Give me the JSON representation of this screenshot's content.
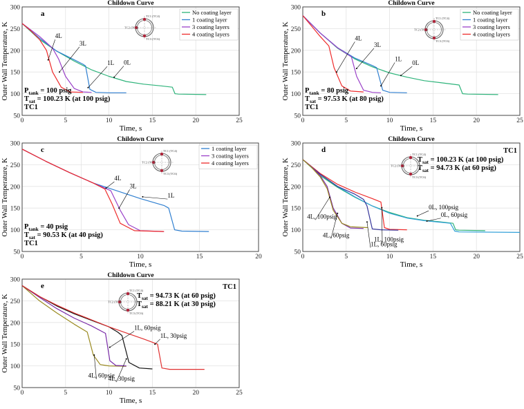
{
  "figure": {
    "title": "Childown Curve multi-panel figure"
  },
  "colors": {
    "no_coating": "#2db37a",
    "one": "#2f7fd0",
    "three": "#9a40c8",
    "four": "#ee2a2a",
    "fourL60": "#9a8a20",
    "oneL30": "#e03030",
    "fourL30": "#111111"
  },
  "chart_data": [
    {
      "panel": "a",
      "type": "line",
      "title": "Childown Curve",
      "xlabel": "Time, s",
      "ylabel": "Outer Wall Temperature, K",
      "xlim": [
        0,
        25
      ],
      "ylim": [
        50,
        300
      ],
      "xticks": [
        0,
        5,
        10,
        15,
        20,
        25
      ],
      "yticks": [
        50,
        100,
        150,
        200,
        250,
        300
      ],
      "grid": true,
      "legend_position": "top-right",
      "info": [
        "P_tank = 100 psig",
        "T_sat = 100.23 K (at 100 psig)",
        "TC1"
      ],
      "series": [
        {
          "name": "No coating layer",
          "color": "#2db37a",
          "label": "0L",
          "x": [
            0,
            2,
            4,
            6,
            8,
            10,
            12,
            14,
            16,
            17.3,
            17.6,
            18,
            21.2
          ],
          "y": [
            262,
            225,
            198,
            175,
            155,
            140,
            128,
            122,
            118,
            115,
            100,
            99,
            98
          ]
        },
        {
          "name": "1 coating layer",
          "color": "#2f7fd0",
          "label": "1L",
          "x": [
            0,
            2,
            4,
            6,
            7,
            7.3,
            7.8,
            8.5,
            10,
            12
          ],
          "y": [
            262,
            228,
            198,
            178,
            168,
            164,
            110,
            103,
            102,
            102
          ]
        },
        {
          "name": "3 coating layers",
          "color": "#9a40c8",
          "label": "3L",
          "x": [
            0,
            2,
            3.5,
            4.2,
            5,
            6,
            7,
            8
          ],
          "y": [
            262,
            232,
            205,
            180,
            140,
            112,
            104,
            103
          ]
        },
        {
          "name": "4 coating layers",
          "color": "#ee2a2a",
          "label": "4L",
          "x": [
            0,
            1,
            2,
            2.8,
            3.5,
            4.5,
            5.5,
            7
          ],
          "y": [
            262,
            245,
            225,
            200,
            150,
            115,
            104,
            103
          ]
        }
      ]
    },
    {
      "panel": "b",
      "type": "line",
      "title": "Childown Curve",
      "xlabel": "Time, s",
      "ylabel": "Outer Wall Temperature, K",
      "xlim": [
        0,
        25
      ],
      "ylim": [
        50,
        300
      ],
      "xticks": [
        0,
        5,
        10,
        15,
        20,
        25
      ],
      "yticks": [
        50,
        100,
        150,
        200,
        250,
        300
      ],
      "grid": true,
      "legend_position": "top-right",
      "info": [
        "P_tank = 80 psig",
        "T_sat = 97.53 K (at 80 psig)",
        "TC1"
      ],
      "series": [
        {
          "name": "No coating layer",
          "color": "#2db37a",
          "label": "0L",
          "x": [
            0,
            2,
            4,
            6,
            8,
            10,
            12,
            14,
            16,
            18,
            18.4,
            19,
            22.5
          ],
          "y": [
            280,
            240,
            205,
            180,
            162,
            148,
            138,
            130,
            125,
            120,
            100,
            99,
            98
          ]
        },
        {
          "name": "1 coating layer",
          "color": "#2f7fd0",
          "label": "1L",
          "x": [
            0,
            2,
            4,
            6,
            8,
            8.5,
            9.2,
            10,
            12
          ],
          "y": [
            280,
            240,
            206,
            182,
            165,
            160,
            108,
            103,
            102
          ]
        },
        {
          "name": "3 coating layers",
          "color": "#9a40c8",
          "label": "3L",
          "x": [
            0,
            2,
            4,
            5.6,
            6.2,
            7,
            8,
            9
          ],
          "y": [
            280,
            240,
            206,
            185,
            140,
            108,
            103,
            102
          ]
        },
        {
          "name": "4 coating layers",
          "color": "#ee2a2a",
          "label": "4L",
          "x": [
            0,
            1,
            2,
            3,
            3.6,
            4.5,
            5.5,
            7
          ],
          "y": [
            280,
            256,
            232,
            210,
            160,
            118,
            106,
            104
          ]
        }
      ]
    },
    {
      "panel": "c",
      "type": "line",
      "title": "Childown Curve",
      "xlabel": "Time, s",
      "ylabel": "Outer Wall Temperature, K",
      "xlim": [
        0,
        20
      ],
      "ylim": [
        50,
        300
      ],
      "xticks": [
        0,
        5,
        10,
        15,
        20
      ],
      "yticks": [
        50,
        100,
        150,
        200,
        250,
        300
      ],
      "grid": true,
      "legend_position": "top-right",
      "info": [
        "P_tank = 40 psig",
        "T_sat = 90.53 K (at 40 psig)",
        "TC1"
      ],
      "series": [
        {
          "name": "1 coating layer",
          "color": "#2f7fd0",
          "label": "1L",
          "x": [
            0,
            2,
            4,
            6,
            8,
            10,
            12,
            12.4,
            12.9,
            13.5,
            15.8
          ],
          "y": [
            286,
            258,
            232,
            208,
            190,
            172,
            156,
            150,
            100,
            97,
            96
          ]
        },
        {
          "name": "3 coating layers",
          "color": "#9a40c8",
          "label": "3L",
          "x": [
            0,
            2,
            4,
            6,
            7.5,
            8.3,
            9,
            10,
            12
          ],
          "y": [
            286,
            258,
            232,
            208,
            190,
            145,
            112,
            98,
            96
          ]
        },
        {
          "name": "4 coating layers",
          "color": "#ee2a2a",
          "label": "4L",
          "x": [
            0,
            2,
            4,
            6,
            7,
            7.6,
            8.3,
            9.5,
            12
          ],
          "y": [
            286,
            258,
            232,
            208,
            194,
            160,
            115,
            98,
            96
          ]
        }
      ]
    },
    {
      "panel": "d",
      "type": "line",
      "title": "Childown Curve",
      "xlabel": "Time, s",
      "ylabel": "Outer Wall Temperature, K",
      "xlim": [
        0,
        25
      ],
      "ylim": [
        50,
        300
      ],
      "xticks": [
        0,
        5,
        10,
        15,
        20,
        25
      ],
      "yticks": [
        50,
        100,
        150,
        200,
        250,
        300
      ],
      "grid": true,
      "info": [
        "TC1",
        "T_sat = 100.23 K (at 100 psig)",
        "T_sat = 94.73 K (at 60 psig)"
      ],
      "series": [
        {
          "name": "0L, 100psig",
          "color": "#2db37a",
          "x": [
            0,
            2,
            4,
            6,
            8,
            10,
            12,
            14,
            16,
            17.3,
            17.6,
            18,
            21
          ],
          "y": [
            262,
            225,
            198,
            175,
            155,
            140,
            128,
            122,
            118,
            115,
            100,
            99,
            98
          ]
        },
        {
          "name": "0L, 60psig",
          "color": "#2f9fd8",
          "x": [
            0,
            2,
            4,
            6,
            8,
            10,
            12,
            14,
            16,
            17,
            17.5,
            18,
            25
          ],
          "y": [
            262,
            228,
            200,
            176,
            155,
            138,
            127,
            121,
            117,
            115,
            97,
            95,
            94
          ]
        },
        {
          "name": "1L, 100psig",
          "color": "#ee2a2a",
          "x": [
            0,
            2,
            4,
            6,
            8,
            9,
            9.4,
            10,
            12
          ],
          "y": [
            262,
            230,
            205,
            187,
            172,
            164,
            105,
            101,
            100
          ]
        },
        {
          "name": "1L, 60psig",
          "color": "#333399",
          "x": [
            0,
            2,
            4,
            6,
            7,
            7.4,
            8,
            9,
            11
          ],
          "y": [
            262,
            228,
            200,
            182,
            170,
            155,
            102,
            100,
            99
          ]
        },
        {
          "name": "4L, 100psig",
          "color": "#7a2ba8",
          "x": [
            0,
            1,
            2,
            2.8,
            3.5,
            4.5,
            5.5,
            7
          ],
          "y": [
            262,
            245,
            225,
            200,
            150,
            115,
            104,
            103
          ]
        },
        {
          "name": "4L, 60psig",
          "color": "#9a8a20",
          "x": [
            0,
            1,
            2,
            2.8,
            3.5,
            4.5,
            5.5,
            7.5
          ],
          "y": [
            262,
            244,
            222,
            195,
            145,
            115,
            107,
            105
          ]
        }
      ],
      "annotations": [
        "0L, 100psig",
        "0L, 60psig",
        "4L, 100psig",
        "4L, 60psig",
        "1L, 60psig",
        "1L, 100psig"
      ]
    },
    {
      "panel": "e",
      "type": "line",
      "title": "Childown Curve",
      "xlabel": "Time, s",
      "ylabel": "Outer Wall Temperature, K",
      "xlim": [
        0,
        25
      ],
      "ylim": [
        50,
        300
      ],
      "xticks": [
        0,
        5,
        10,
        15,
        20,
        25
      ],
      "yticks": [
        50,
        100,
        150,
        200,
        250,
        300
      ],
      "grid": true,
      "info": [
        "TC1",
        "T_sat = 94.73 K (at 60 psig)",
        "T_sat = 88.21 K (at 30 psig)"
      ],
      "series": [
        {
          "name": "4L, 60psig",
          "color": "#9a8a20",
          "x": [
            0,
            2,
            4,
            6,
            7.5,
            8.2,
            9,
            10,
            12
          ],
          "y": [
            285,
            250,
            222,
            196,
            178,
            125,
            103,
            100,
            99
          ]
        },
        {
          "name": "1L, 60psig",
          "color": "#7a2ba8",
          "x": [
            0,
            2,
            4,
            6,
            8,
            9.6,
            10.1,
            10.8,
            12
          ],
          "y": [
            285,
            258,
            232,
            210,
            192,
            175,
            112,
            101,
            100
          ]
        },
        {
          "name": "4L, 30psig",
          "color": "#111111",
          "x": [
            0,
            2,
            4,
            6,
            8,
            10,
            11,
            11.5,
            12.3,
            13.5,
            15
          ],
          "y": [
            285,
            260,
            238,
            220,
            205,
            190,
            178,
            170,
            108,
            95,
            93
          ]
        },
        {
          "name": "1L, 30psig",
          "color": "#e03030",
          "x": [
            0,
            2,
            4,
            6,
            8,
            10,
            12,
            14,
            15.6,
            16.1,
            17,
            21
          ],
          "y": [
            285,
            260,
            240,
            222,
            206,
            190,
            176,
            162,
            150,
            95,
            92,
            92
          ]
        }
      ],
      "annotations": [
        "1L, 60psig",
        "1L, 30psig",
        "4L, 60psig",
        "4L, 30psig"
      ]
    }
  ],
  "inset": {
    "labels": [
      "TC1 (TC4)",
      "TC2 (TC5)",
      "TC3 (TC6)"
    ]
  },
  "panel_labels": {
    "a": {
      "curve_labels": [
        {
          "text": "4L",
          "x": 3.8,
          "y": 228,
          "ax": 3.0,
          "ay": 178
        },
        {
          "text": "3L",
          "x": 6.6,
          "y": 211,
          "ax": 4.3,
          "ay": 150
        },
        {
          "text": "1L",
          "x": 9.8,
          "y": 166,
          "ax": 7.6,
          "ay": 114
        },
        {
          "text": "0L",
          "x": 11.7,
          "y": 167,
          "ax": 10.6,
          "ay": 138
        }
      ]
    },
    "b": {
      "curve_labels": [
        {
          "text": "4L",
          "x": 6.0,
          "y": 223,
          "ax": 3.9,
          "ay": 150
        },
        {
          "text": "3L",
          "x": 8.2,
          "y": 208,
          "ax": 6.2,
          "ay": 158
        },
        {
          "text": "1L",
          "x": 10.6,
          "y": 175,
          "ax": 9.0,
          "ay": 118
        },
        {
          "text": "0L",
          "x": 12.6,
          "y": 166,
          "ax": 11.3,
          "ay": 142
        }
      ]
    },
    "c": {
      "curve_labels": [
        {
          "text": "4L",
          "x": 7.8,
          "y": 214,
          "ax": 7.1,
          "ay": 196
        },
        {
          "text": "3L",
          "x": 9.1,
          "y": 196,
          "ax": 8.2,
          "ay": 150
        },
        {
          "text": "1L",
          "x": 12.3,
          "y": 174,
          "ax": 10.2,
          "ay": 176
        }
      ]
    },
    "d": {
      "curve_labels": [
        {
          "text": "0L, 100psig",
          "x": 14.5,
          "y": 147,
          "ax": 13.2,
          "ay": 132
        },
        {
          "text": "0L, 60psig",
          "x": 15.9,
          "y": 130,
          "ax": 14.3,
          "ay": 120
        },
        {
          "text": "4L, 100psig",
          "x": 0.5,
          "y": 126,
          "ax": 3.1,
          "ay": 175
        },
        {
          "text": "4L, 60psig",
          "x": 2.3,
          "y": 83,
          "ax": 4.0,
          "ay": 138
        },
        {
          "text": "1L, 60psig",
          "x": 7.8,
          "y": 62,
          "ax": 7.4,
          "ay": 118
        },
        {
          "text": "1L, 100psig",
          "x": 8.2,
          "y": 73,
          "ax": 9.1,
          "ay": 151
        }
      ]
    },
    "e": {
      "curve_labels": [
        {
          "text": "1L, 60psig",
          "x": 12.9,
          "y": 183,
          "ax": 10.1,
          "ay": 143
        },
        {
          "text": "1L, 30psig",
          "x": 15.9,
          "y": 165,
          "ax": 15.3,
          "ay": 150
        },
        {
          "text": "4L, 60psig",
          "x": 7.6,
          "y": 73,
          "ax": 8.3,
          "ay": 125
        },
        {
          "text": "4L, 30psig",
          "x": 9.9,
          "y": 66,
          "ax": 12.0,
          "ay": 116
        }
      ]
    }
  }
}
